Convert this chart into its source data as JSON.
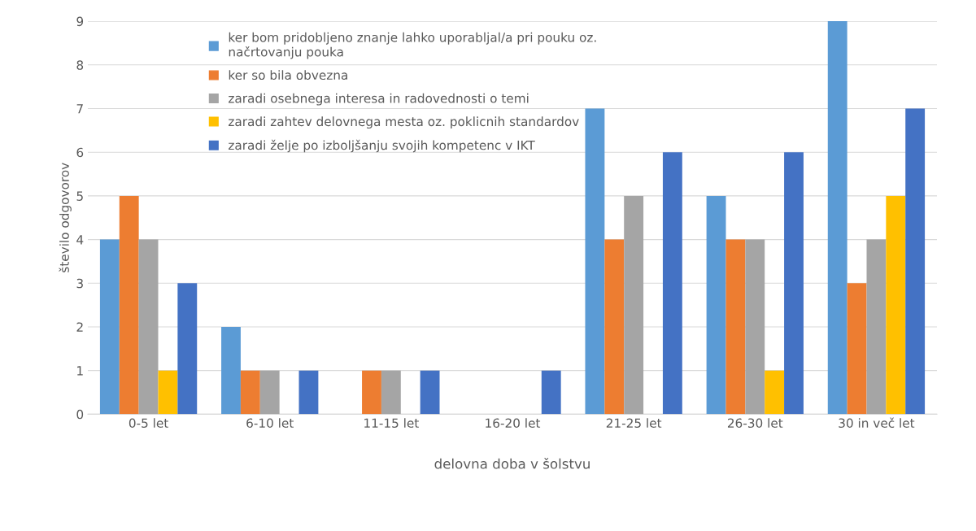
{
  "chart_data": {
    "type": "bar",
    "xlabel": "delovna doba v šolstvu",
    "ylabel": "število odgovorov",
    "categories": [
      "0-5 let",
      "6-10 let",
      "11-15 let",
      "16-20 let",
      "21-25 let",
      "26-30 let",
      "30 in več let"
    ],
    "series": [
      {
        "name": "ker bom pridobljeno znanje lahko uporabljal/a pri pouku oz.\nnačrtovanju pouka",
        "color": "#5b9bd5",
        "values": [
          4,
          2,
          0,
          0,
          7,
          5,
          9
        ]
      },
      {
        "name": "ker so bila obvezna",
        "color": "#ed7d31",
        "values": [
          5,
          1,
          1,
          0,
          4,
          4,
          3
        ]
      },
      {
        "name": "zaradi osebnega interesa in radovednosti o temi",
        "color": "#a5a5a5",
        "values": [
          4,
          1,
          1,
          0,
          5,
          4,
          4
        ]
      },
      {
        "name": "zaradi zahtev delovnega mesta oz. poklicnih standardov",
        "color": "#ffc000",
        "values": [
          1,
          0,
          0,
          0,
          0,
          1,
          5
        ]
      },
      {
        "name": "zaradi želje po izboljšanju svojih kompetenc v IKT",
        "color": "#4472c4",
        "values": [
          3,
          1,
          1,
          1,
          6,
          6,
          7
        ]
      }
    ],
    "ylim": [
      0,
      9
    ],
    "yticks": [
      0,
      1,
      2,
      3,
      4,
      5,
      6,
      7,
      8,
      9
    ],
    "grid": "y",
    "legend": "top left"
  }
}
